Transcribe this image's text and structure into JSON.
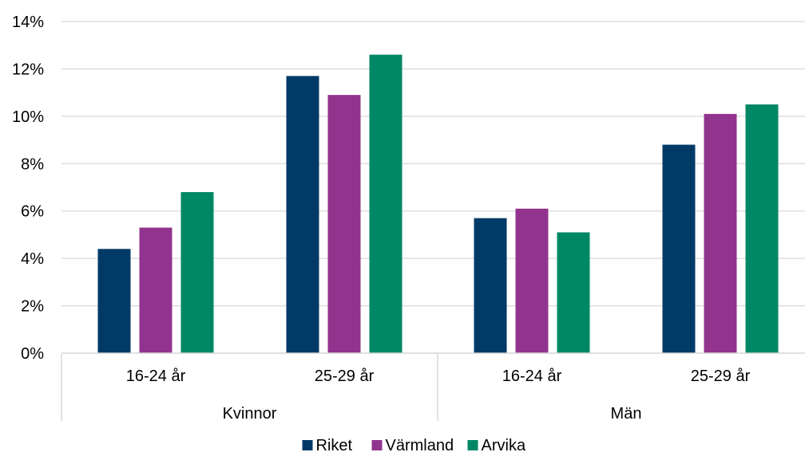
{
  "chart_data": {
    "type": "bar",
    "groups": [
      {
        "label": "Kvinnor",
        "categories": [
          "16-24 år",
          "25-29 år"
        ]
      },
      {
        "label": "Män",
        "categories": [
          "16-24 år",
          "25-29 år"
        ]
      }
    ],
    "series": [
      {
        "name": "Riket",
        "color": "#003a66",
        "values": [
          4.4,
          11.7,
          5.7,
          8.8
        ]
      },
      {
        "name": "Värmland",
        "color": "#92348e",
        "values": [
          5.3,
          10.9,
          6.1,
          10.1
        ]
      },
      {
        "name": "Arvika",
        "color": "#008765",
        "values": [
          6.8,
          12.6,
          5.1,
          10.5
        ]
      }
    ],
    "ylim": [
      0,
      14
    ],
    "yticks": [
      0,
      2,
      4,
      6,
      8,
      10,
      12,
      14
    ],
    "y_unit": "%",
    "grid": true,
    "legend_position": "bottom"
  }
}
